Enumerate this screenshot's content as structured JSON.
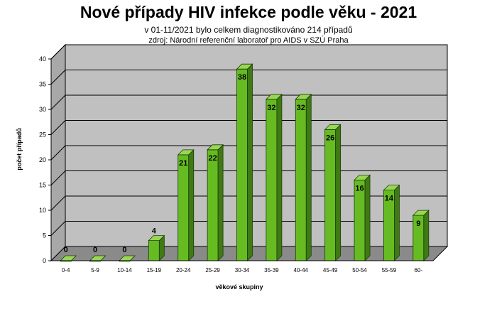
{
  "chart_data": {
    "type": "bar",
    "title": "Nové případy HIV infekce podle věku - 2021",
    "subtitle": "v 01-11/2021 bylo celkem diagnostikováno 214 případů",
    "source": "zdroj:  Národní  referenční  laboratoř  pro AIDS v SZÚ  Praha",
    "xlabel": "věkové skupiny",
    "ylabel": "počet případů",
    "categories": [
      "0-4",
      "5-9",
      "10-14",
      "15-19",
      "20-24",
      "25-29",
      "30-34",
      "35-39",
      "40-44",
      "45-49",
      "50-54",
      "55-59",
      "60-"
    ],
    "values": [
      0,
      0,
      0,
      4,
      21,
      22,
      38,
      32,
      32,
      26,
      16,
      14,
      9
    ],
    "data_labels": [
      "0",
      "0",
      "0",
      "4",
      "21",
      "22",
      "38",
      "32",
      "32",
      "26",
      "16",
      "14",
      "9"
    ],
    "y_ticks": [
      "0",
      "5",
      "10",
      "15",
      "20",
      "25",
      "30",
      "35",
      "40"
    ],
    "ylim": [
      0,
      40
    ],
    "grid": true,
    "legend": "none",
    "colors": {
      "bar_front": "#66bb22",
      "bar_side": "#3f7a14",
      "bar_top": "#9ad655",
      "wall": "#c0c0c0",
      "floor": "#8a8a8a"
    }
  }
}
